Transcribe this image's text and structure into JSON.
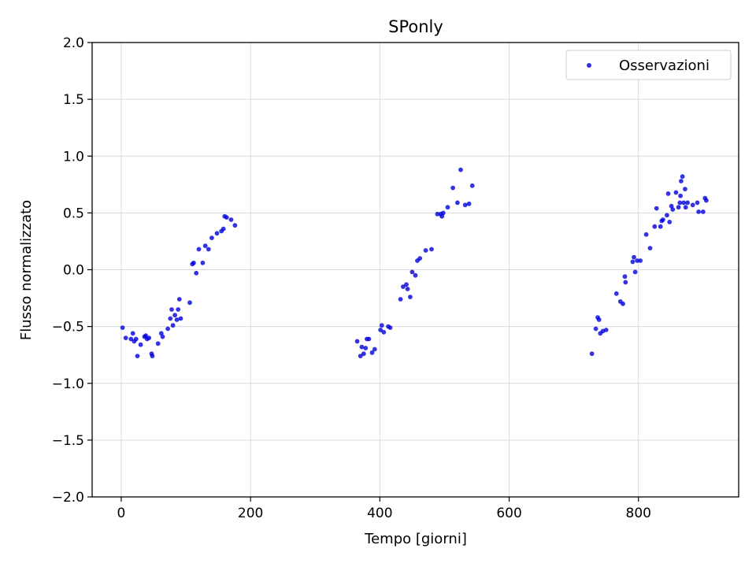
{
  "chart_data": {
    "type": "scatter",
    "title": "SPonly",
    "xlabel": "Tempo [giorni]",
    "ylabel": "Flusso normalizzato",
    "xlim": [
      -45,
      955
    ],
    "ylim": [
      -2.0,
      2.0
    ],
    "xticks": [
      0,
      200,
      400,
      600,
      800
    ],
    "yticks": [
      -2.0,
      -1.5,
      -1.0,
      -0.5,
      0.0,
      0.5,
      1.0,
      1.5,
      2.0
    ],
    "xtick_labels": [
      "0",
      "200",
      "400",
      "600",
      "800"
    ],
    "ytick_labels": [
      "−2.0",
      "−1.5",
      "−1.0",
      "−0.5",
      "0.0",
      "0.5",
      "1.0",
      "1.5",
      "2.0"
    ],
    "grid": true,
    "legend_position": "top-right",
    "series": [
      {
        "name": "Osservazioni",
        "color": "#0000dd",
        "points": [
          [
            2,
            -0.51
          ],
          [
            7,
            -0.6
          ],
          [
            15,
            -0.61
          ],
          [
            18,
            -0.56
          ],
          [
            20,
            -0.63
          ],
          [
            23,
            -0.61
          ],
          [
            25,
            -0.76
          ],
          [
            30,
            -0.66
          ],
          [
            36,
            -0.59
          ],
          [
            38,
            -0.58
          ],
          [
            40,
            -0.61
          ],
          [
            43,
            -0.6
          ],
          [
            47,
            -0.74
          ],
          [
            48,
            -0.76
          ],
          [
            57,
            -0.65
          ],
          [
            62,
            -0.56
          ],
          [
            64,
            -0.59
          ],
          [
            72,
            -0.52
          ],
          [
            76,
            -0.43
          ],
          [
            78,
            -0.35
          ],
          [
            80,
            -0.49
          ],
          [
            83,
            -0.4
          ],
          [
            86,
            -0.44
          ],
          [
            88,
            -0.35
          ],
          [
            90,
            -0.26
          ],
          [
            92,
            -0.43
          ],
          [
            106,
            -0.29
          ],
          [
            110,
            0.05
          ],
          [
            112,
            0.06
          ],
          [
            116,
            -0.03
          ],
          [
            120,
            0.18
          ],
          [
            126,
            0.06
          ],
          [
            130,
            0.21
          ],
          [
            135,
            0.18
          ],
          [
            140,
            0.28
          ],
          [
            148,
            0.32
          ],
          [
            155,
            0.34
          ],
          [
            158,
            0.36
          ],
          [
            160,
            0.47
          ],
          [
            163,
            0.46
          ],
          [
            170,
            0.44
          ],
          [
            176,
            0.39
          ],
          [
            365,
            -0.63
          ],
          [
            370,
            -0.76
          ],
          [
            372,
            -0.68
          ],
          [
            375,
            -0.74
          ],
          [
            378,
            -0.69
          ],
          [
            380,
            -0.61
          ],
          [
            383,
            -0.61
          ],
          [
            388,
            -0.73
          ],
          [
            392,
            -0.7
          ],
          [
            401,
            -0.53
          ],
          [
            403,
            -0.49
          ],
          [
            406,
            -0.55
          ],
          [
            413,
            -0.5
          ],
          [
            416,
            -0.51
          ],
          [
            432,
            -0.26
          ],
          [
            436,
            -0.15
          ],
          [
            441,
            -0.13
          ],
          [
            443,
            -0.17
          ],
          [
            447,
            -0.24
          ],
          [
            450,
            -0.02
          ],
          [
            455,
            -0.05
          ],
          [
            458,
            0.08
          ],
          [
            462,
            0.1
          ],
          [
            471,
            0.17
          ],
          [
            480,
            0.18
          ],
          [
            489,
            0.49
          ],
          [
            494,
            0.49
          ],
          [
            496,
            0.47
          ],
          [
            498,
            0.5
          ],
          [
            505,
            0.55
          ],
          [
            513,
            0.72
          ],
          [
            520,
            0.59
          ],
          [
            525,
            0.88
          ],
          [
            532,
            0.57
          ],
          [
            538,
            0.58
          ],
          [
            543,
            0.74
          ],
          [
            728,
            -0.74
          ],
          [
            734,
            -0.52
          ],
          [
            737,
            -0.42
          ],
          [
            739,
            -0.44
          ],
          [
            741,
            -0.56
          ],
          [
            745,
            -0.54
          ],
          [
            750,
            -0.53
          ],
          [
            766,
            -0.21
          ],
          [
            772,
            -0.28
          ],
          [
            776,
            -0.3
          ],
          [
            779,
            -0.06
          ],
          [
            780,
            -0.11
          ],
          [
            791,
            0.07
          ],
          [
            793,
            0.11
          ],
          [
            795,
            -0.02
          ],
          [
            798,
            0.08
          ],
          [
            803,
            0.08
          ],
          [
            812,
            0.31
          ],
          [
            818,
            0.19
          ],
          [
            825,
            0.38
          ],
          [
            828,
            0.54
          ],
          [
            834,
            0.38
          ],
          [
            836,
            0.43
          ],
          [
            838,
            0.44
          ],
          [
            844,
            0.48
          ],
          [
            846,
            0.67
          ],
          [
            848,
            0.42
          ],
          [
            851,
            0.56
          ],
          [
            853,
            0.53
          ],
          [
            858,
            0.68
          ],
          [
            862,
            0.55
          ],
          [
            864,
            0.59
          ],
          [
            865,
            0.65
          ],
          [
            866,
            0.78
          ],
          [
            868,
            0.82
          ],
          [
            870,
            0.59
          ],
          [
            872,
            0.71
          ],
          [
            873,
            0.55
          ],
          [
            876,
            0.59
          ],
          [
            884,
            0.57
          ],
          [
            891,
            0.59
          ],
          [
            893,
            0.51
          ],
          [
            900,
            0.51
          ],
          [
            903,
            0.63
          ],
          [
            905,
            0.61
          ]
        ]
      }
    ]
  }
}
